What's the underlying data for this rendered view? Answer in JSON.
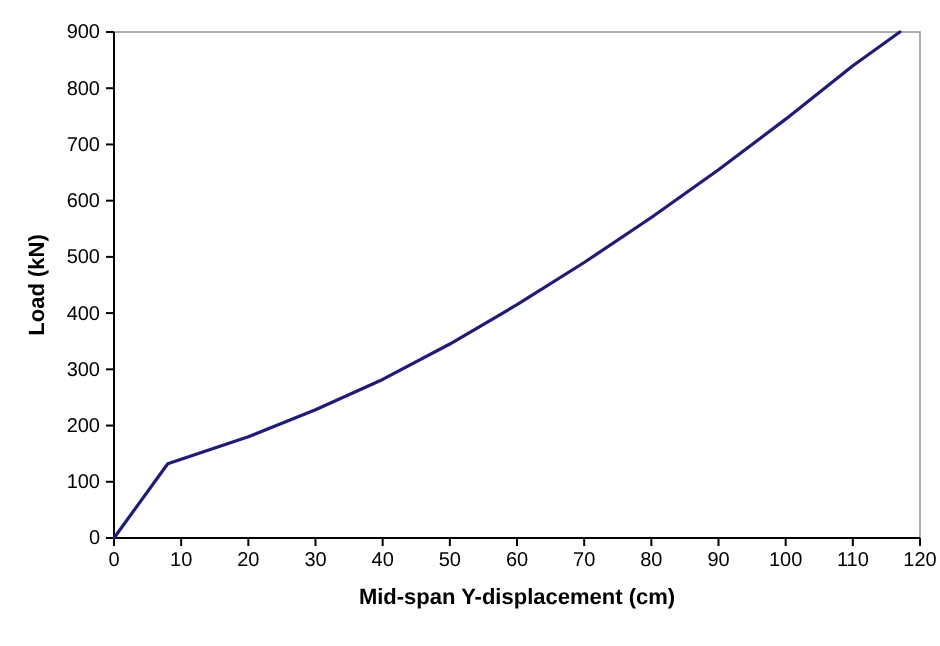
{
  "chart_data": {
    "type": "line",
    "xlabel": "Mid-span Y-displacement (cm)",
    "ylabel": "Load (kN)",
    "x": [
      0,
      8,
      10,
      15,
      20,
      30,
      40,
      50,
      60,
      70,
      80,
      90,
      100,
      110,
      117
    ],
    "series": [
      {
        "color": "#1f1a80",
        "values": [
          0,
          132,
          140,
          160,
          180,
          228,
          282,
          345,
          415,
          490,
          570,
          655,
          745,
          840,
          900
        ]
      }
    ],
    "xlim": [
      0,
      120
    ],
    "xticks": [
      0,
      10,
      20,
      30,
      40,
      50,
      60,
      70,
      80,
      90,
      100,
      110,
      120
    ],
    "ylim": [
      0,
      900
    ],
    "yticks": [
      0,
      100,
      200,
      300,
      400,
      500,
      600,
      700,
      800,
      900
    ],
    "grid": false,
    "marker": "none",
    "line_style": "solid"
  }
}
